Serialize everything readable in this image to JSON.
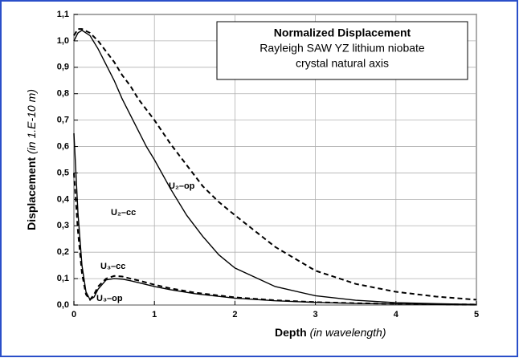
{
  "chart_data": {
    "type": "line",
    "title": "Normalized Displacement",
    "subtitle": [
      "Rayleigh SAW YZ lithium niobate",
      "crystal natural axis"
    ],
    "xlabel": [
      "Depth",
      "(in wavelength)"
    ],
    "ylabel": [
      "Displacement",
      "(in 1.E-10 m)"
    ],
    "xlim": [
      0,
      5
    ],
    "xticks": [
      0,
      1,
      2,
      3,
      4,
      5
    ],
    "ylim": [
      0,
      1.1
    ],
    "yticks": [
      {
        "value": 0,
        "label": "0,0"
      },
      {
        "value": 0.1,
        "label": "0,1"
      },
      {
        "value": 0.2,
        "label": "0,2"
      },
      {
        "value": 0.3,
        "label": "0,3"
      },
      {
        "value": 0.4,
        "label": "0,4"
      },
      {
        "value": 0.5,
        "label": "0,5"
      },
      {
        "value": 0.6,
        "label": "0,6"
      },
      {
        "value": 0.7,
        "label": "0,7"
      },
      {
        "value": 0.8,
        "label": "0,8"
      },
      {
        "value": 0.9,
        "label": "0,9"
      },
      {
        "value": 1.0,
        "label": "1,0"
      },
      {
        "value": 1.1,
        "label": "1,1"
      }
    ],
    "grid": true,
    "series": [
      {
        "name": "U₂–cc",
        "color": "#000000",
        "dash": false,
        "x": [
          0,
          0.05,
          0.1,
          0.2,
          0.3,
          0.4,
          0.5,
          0.6,
          0.7,
          0.8,
          0.9,
          1.0,
          1.2,
          1.4,
          1.6,
          1.8,
          2.0,
          2.5,
          3,
          3.5,
          4,
          4.5,
          5
        ],
        "values": [
          1.0,
          1.03,
          1.04,
          1.02,
          0.97,
          0.91,
          0.85,
          0.78,
          0.72,
          0.66,
          0.6,
          0.55,
          0.44,
          0.34,
          0.26,
          0.19,
          0.14,
          0.07,
          0.035,
          0.018,
          0.009,
          0.005,
          0.002
        ]
      },
      {
        "name": "U₂–op",
        "color": "#000000",
        "dash": true,
        "x": [
          0,
          0.05,
          0.1,
          0.2,
          0.3,
          0.4,
          0.5,
          0.6,
          0.7,
          0.8,
          0.9,
          1.0,
          1.2,
          1.4,
          1.6,
          1.8,
          2.0,
          2.5,
          3,
          3.5,
          4,
          4.5,
          5
        ],
        "values": [
          1.02,
          1.045,
          1.045,
          1.03,
          1.0,
          0.96,
          0.92,
          0.87,
          0.83,
          0.78,
          0.74,
          0.7,
          0.61,
          0.53,
          0.45,
          0.39,
          0.34,
          0.22,
          0.13,
          0.08,
          0.05,
          0.032,
          0.02
        ]
      },
      {
        "name": "U₃–cc",
        "color": "#000000",
        "dash": false,
        "x": [
          0,
          0.05,
          0.1,
          0.15,
          0.2,
          0.25,
          0.3,
          0.4,
          0.5,
          0.6,
          0.7,
          0.8,
          1.0,
          1.2,
          1.5,
          2,
          2.5,
          3,
          3.5,
          4,
          4.5,
          5
        ],
        "values": [
          0.65,
          0.35,
          0.15,
          0.05,
          0.02,
          0.03,
          0.06,
          0.095,
          0.1,
          0.098,
          0.092,
          0.085,
          0.07,
          0.058,
          0.043,
          0.026,
          0.016,
          0.01,
          0.006,
          0.004,
          0.002,
          0.001
        ]
      },
      {
        "name": "U₃–op",
        "color": "#000000",
        "dash": true,
        "x": [
          0,
          0.05,
          0.1,
          0.15,
          0.2,
          0.25,
          0.3,
          0.4,
          0.5,
          0.6,
          0.7,
          0.8,
          1.0,
          1.2,
          1.5,
          2,
          2.5,
          3,
          3.5,
          4,
          4.5,
          5
        ],
        "values": [
          0.5,
          0.28,
          0.12,
          0.04,
          0.02,
          0.04,
          0.07,
          0.1,
          0.11,
          0.108,
          0.1,
          0.093,
          0.077,
          0.063,
          0.047,
          0.029,
          0.018,
          0.011,
          0.007,
          0.004,
          0.003,
          0.002
        ]
      }
    ]
  }
}
